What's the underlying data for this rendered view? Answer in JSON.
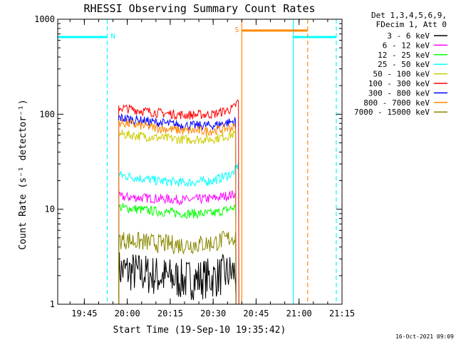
{
  "chart_data": {
    "type": "line",
    "title": "RHESSI Observing Summary Count Rates",
    "xlabel": "Start Time (19-Sep-10 19:35:42)",
    "ylabel": "Count Rate (s⁻¹ detector⁻¹)",
    "ylog": true,
    "ylim": [
      1,
      1000
    ],
    "xlim": [
      "19:35:42",
      "21:15:00"
    ],
    "x_ticks": [
      "19:45",
      "20:00",
      "20:15",
      "20:30",
      "20:45",
      "21:00",
      "21:15"
    ],
    "y_ticks": [
      "1",
      "10",
      "100",
      "1000"
    ],
    "legend_header": [
      "Det 1,3,4,5,6,9,",
      "FDecim 1, Att 0"
    ],
    "legend_position": "top-right",
    "timestamp": "16-Oct-2021 09:09",
    "series": [
      {
        "name": "3 - 6 keV",
        "color": "#000000",
        "points": [
          [
            "19:57",
            2.3
          ],
          [
            "20:10",
            2.0
          ],
          [
            "20:20",
            1.8
          ],
          [
            "20:30",
            1.9
          ],
          [
            "20:38",
            2.2
          ]
        ]
      },
      {
        "name": "6 - 12 keV",
        "color": "#ff00ff",
        "points": [
          [
            "19:57",
            13.5
          ],
          [
            "20:10",
            13.0
          ],
          [
            "20:20",
            12.5
          ],
          [
            "20:30",
            13.0
          ],
          [
            "20:38",
            14.5
          ]
        ]
      },
      {
        "name": "12 - 25 keV",
        "color": "#00ff00",
        "points": [
          [
            "19:57",
            10.5
          ],
          [
            "20:10",
            9.5
          ],
          [
            "20:20",
            9.0
          ],
          [
            "20:30",
            9.0
          ],
          [
            "20:38",
            10.5
          ]
        ]
      },
      {
        "name": "25 - 50 keV",
        "color": "#00ffff",
        "points": [
          [
            "19:57",
            23
          ],
          [
            "20:10",
            20
          ],
          [
            "20:20",
            19
          ],
          [
            "20:30",
            20
          ],
          [
            "20:37",
            24
          ],
          [
            "20:39",
            30
          ]
        ]
      },
      {
        "name": "50 - 100 keV",
        "color": "#cccc00",
        "points": [
          [
            "19:57",
            62
          ],
          [
            "20:10",
            57
          ],
          [
            "20:20",
            54
          ],
          [
            "20:30",
            55
          ],
          [
            "20:38",
            62
          ]
        ]
      },
      {
        "name": "100 - 300 keV",
        "color": "#ff0000",
        "points": [
          [
            "19:57",
            118
          ],
          [
            "20:10",
            104
          ],
          [
            "20:20",
            98
          ],
          [
            "20:30",
            100
          ],
          [
            "20:37",
            115
          ],
          [
            "20:39",
            140
          ]
        ]
      },
      {
        "name": "300 - 800 keV",
        "color": "#0000ff",
        "points": [
          [
            "19:57",
            92
          ],
          [
            "20:10",
            82
          ],
          [
            "20:20",
            76
          ],
          [
            "20:30",
            76
          ],
          [
            "20:38",
            85
          ]
        ]
      },
      {
        "name": "800 - 7000 keV",
        "color": "#ff8800",
        "points": [
          [
            "19:57",
            82
          ],
          [
            "20:10",
            72
          ],
          [
            "20:20",
            67
          ],
          [
            "20:30",
            67
          ],
          [
            "20:38",
            74
          ]
        ]
      },
      {
        "name": "7000 - 15000 keV",
        "color": "#888800",
        "points": [
          [
            "19:57",
            4.8
          ],
          [
            "20:10",
            4.4
          ],
          [
            "20:20",
            4.2
          ],
          [
            "20:30",
            4.4
          ],
          [
            "20:38",
            5.2
          ]
        ]
      }
    ],
    "markers": [
      {
        "label": "N",
        "color": "#00ffff",
        "segments": [
          [
            "19:35:42",
            "19:53",
            650
          ],
          [
            "20:58",
            "21:13",
            650
          ]
        ],
        "edges": [
          [
            "19:53",
            "dashed"
          ],
          [
            "20:58",
            "solid"
          ],
          [
            "21:13",
            "dashed"
          ]
        ]
      },
      {
        "label": "S",
        "color": "#ff8800",
        "segments": [
          [
            "20:40",
            "21:03",
            760
          ]
        ],
        "edges": [
          [
            "20:40",
            "solid"
          ],
          [
            "21:03",
            "dashed"
          ]
        ]
      }
    ],
    "grid": false
  }
}
